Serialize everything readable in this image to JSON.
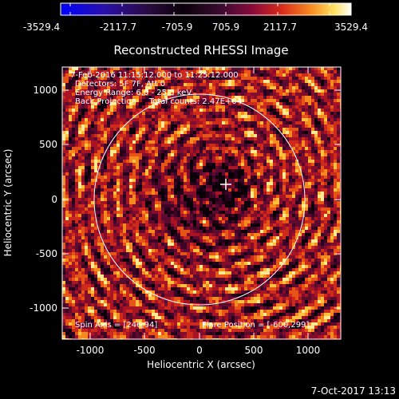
{
  "colorbar": {
    "ticks": [
      "-3529.4",
      "-2117.7",
      "-705.9",
      "705.9",
      "2117.7",
      "3529.4"
    ]
  },
  "plot": {
    "title": "Reconstructed RHESSI Image",
    "xlabel": "Heliocentric X (arcsec)",
    "ylabel": "Heliocentric Y (arcsec)",
    "x_ticks": [
      "-1000",
      "-500",
      "0",
      "500",
      "1000"
    ],
    "y_ticks": [
      "1000",
      "500",
      "0",
      "-500",
      "-1000"
    ]
  },
  "annotations": {
    "line1": "7-Feb-2016 11:15:12.000 to 11:25:12.000",
    "line2": "Detectors: 5F 7F, Att 0",
    "line3": "Energy Range: 6.0 - 25.0 keV",
    "line4": "Back Projection     Total counts: 2.47E+04",
    "spin_axis": "Spin Axis = [246,94]",
    "flare_position": "Flare Position = [-600,299]"
  },
  "footer": {
    "timestamp": "7-Oct-2017 13:13"
  },
  "colors": {
    "background": "#000000",
    "colormap": [
      "#0000ff",
      "#3010a0",
      "#100020",
      "#000000",
      "#300010",
      "#7a0a3a",
      "#c82828",
      "#f07020",
      "#ffd040",
      "#ffffff"
    ]
  }
}
